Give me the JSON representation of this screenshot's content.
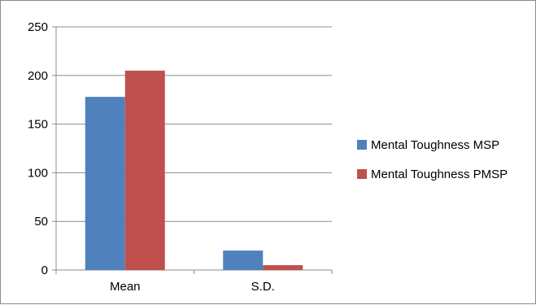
{
  "chart_data": {
    "type": "bar",
    "title": "",
    "xlabel": "",
    "ylabel": "",
    "categories": [
      "Mean",
      "S.D."
    ],
    "series": [
      {
        "name": "Mental Toughness MSP",
        "values": [
          178,
          20
        ],
        "color": "#4f81bd"
      },
      {
        "name": "Mental Toughness PMSP",
        "values": [
          205,
          5
        ],
        "color": "#c0504d"
      }
    ],
    "ylim": [
      0,
      250
    ],
    "yticks": [
      0,
      50,
      100,
      150,
      200,
      250
    ],
    "ytick_labels": [
      "0",
      "50",
      "100",
      "150",
      "200",
      "250"
    ],
    "grid": true,
    "legend_position": "right"
  }
}
